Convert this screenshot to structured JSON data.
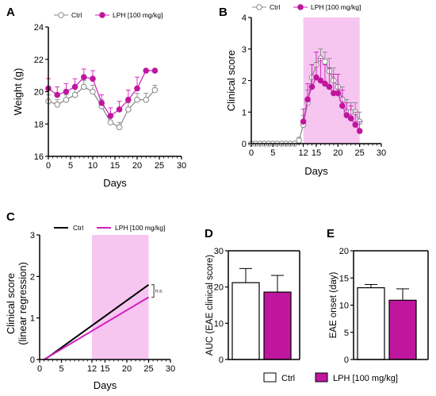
{
  "colors": {
    "ctrl": "#ffffff",
    "lph": "#c0169e",
    "lph_line": "#d11fbf",
    "ctrl_line": "#888888",
    "highlight": "#f6c6f1",
    "black": "#000000"
  },
  "panels": {
    "A": "A",
    "B": "B",
    "C": "C",
    "D": "D",
    "E": "E"
  },
  "legend_bottom": {
    "ctrl": "Ctrl",
    "lph": "LPH [100 mg/kg]"
  },
  "chart_data": [
    {
      "panel": "A",
      "type": "line",
      "xlabel": "Days",
      "ylabel": "Weight (g)",
      "xlim": [
        0,
        30
      ],
      "ylim": [
        16,
        24
      ],
      "xticks": [
        "0",
        "5",
        "10",
        "15",
        "20",
        "25",
        "30"
      ],
      "yticks": [
        "16",
        "18",
        "20",
        "22",
        "24"
      ],
      "legend": [
        "Ctrl",
        "LPH [100 mg/kg]"
      ],
      "x": [
        0,
        2,
        4,
        6,
        8,
        10,
        12,
        14,
        16,
        18,
        20,
        22,
        24
      ],
      "series": [
        {
          "name": "Ctrl",
          "values": [
            19.4,
            19.2,
            19.5,
            19.8,
            20.3,
            20.0,
            19.1,
            18.1,
            17.8,
            18.9,
            19.5,
            19.5,
            20.1
          ],
          "err": [
            0.4,
            0.3,
            0.3,
            0.4,
            0.4,
            0.4,
            0.4,
            0.4,
            0.3,
            0.4,
            0.4,
            0.4,
            0.3
          ]
        },
        {
          "name": "LPH [100 mg/kg]",
          "values": [
            20.2,
            19.8,
            20.0,
            20.3,
            20.9,
            20.8,
            19.3,
            18.5,
            18.9,
            19.5,
            20.2,
            21.3,
            21.3
          ],
          "err": [
            0.6,
            0.5,
            0.5,
            0.5,
            0.5,
            0.5,
            0.5,
            0.5,
            0.5,
            0.6,
            0.7,
            0.0,
            0.0
          ]
        }
      ]
    },
    {
      "panel": "B",
      "type": "line",
      "xlabel": "Days",
      "ylabel": "Clinical score",
      "xlim": [
        0,
        30
      ],
      "ylim": [
        0,
        4
      ],
      "xticks": [
        "0",
        "5",
        "12",
        "15",
        "20",
        "25",
        "30"
      ],
      "yticks": [
        "0",
        "1",
        "2",
        "3",
        "4"
      ],
      "shaded_x": [
        12,
        25
      ],
      "legend": [
        "Ctrl",
        "LPH [100 mg/kg]"
      ],
      "x": [
        0,
        1,
        2,
        3,
        4,
        5,
        6,
        7,
        8,
        9,
        10,
        11,
        12,
        13,
        14,
        15,
        16,
        17,
        18,
        19,
        20,
        21,
        22,
        23,
        24,
        25
      ],
      "series": [
        {
          "name": "Ctrl",
          "values": [
            0,
            0,
            0,
            0,
            0,
            0,
            0,
            0,
            0,
            0,
            0,
            0.1,
            0.6,
            1.3,
            2.1,
            2.5,
            2.7,
            2.6,
            2.3,
            2.0,
            1.8,
            1.4,
            1.0,
            1.0,
            1.0,
            0.7
          ],
          "err": [
            0,
            0,
            0,
            0,
            0,
            0,
            0,
            0,
            0,
            0,
            0,
            0.1,
            0.3,
            0.4,
            0.4,
            0.4,
            0.3,
            0.3,
            0.4,
            0.4,
            0.4,
            0.4,
            0.4,
            0.3,
            0.3,
            0.3
          ]
        },
        {
          "name": "LPH [100 mg/kg]",
          "values": [
            null,
            null,
            null,
            null,
            null,
            null,
            null,
            null,
            null,
            null,
            null,
            null,
            0.7,
            1.4,
            1.8,
            2.1,
            2.0,
            1.9,
            1.8,
            1.6,
            1.6,
            1.2,
            0.9,
            0.8,
            0.6,
            0.4
          ],
          "err": [
            0,
            0,
            0,
            0,
            0,
            0,
            0,
            0,
            0,
            0,
            0,
            0,
            0.4,
            0.5,
            0.7,
            0.8,
            0.7,
            0.6,
            0.6,
            0.6,
            0.6,
            0.5,
            0.4,
            0.4,
            0.4,
            0.3
          ]
        }
      ]
    },
    {
      "panel": "C",
      "type": "line",
      "xlabel": "Days",
      "ylabel": [
        "Clinical score",
        "(linear regression)"
      ],
      "xlim": [
        0,
        30
      ],
      "ylim": [
        0,
        3
      ],
      "xticks": [
        "0",
        "5",
        "12",
        "15",
        "20",
        "25",
        "30"
      ],
      "yticks": [
        "0",
        "1",
        "2",
        "3"
      ],
      "shaded_x": [
        12,
        25
      ],
      "legend": [
        "Ctrl",
        "LPH [100 mg/kg]"
      ],
      "annotation": "n.s.",
      "series": [
        {
          "name": "Ctrl",
          "x": [
            1.2,
            25
          ],
          "values": [
            0,
            1.8
          ]
        },
        {
          "name": "LPH [100 mg/kg]",
          "x": [
            1.0,
            25
          ],
          "values": [
            0,
            1.5
          ]
        }
      ]
    },
    {
      "panel": "D",
      "type": "bar",
      "ylabel": "AUC (EAE clinical score)",
      "ylim": [
        0,
        30
      ],
      "yticks": [
        "0",
        "10",
        "20",
        "30"
      ],
      "categories": [
        "Ctrl",
        "LPH [100 mg/kg]"
      ],
      "values": [
        21.2,
        18.6
      ],
      "err": [
        3.9,
        4.6
      ]
    },
    {
      "panel": "E",
      "type": "bar",
      "ylabel": "EAE onset (day)",
      "ylim": [
        0,
        20
      ],
      "yticks": [
        "0",
        "5",
        "10",
        "15",
        "20"
      ],
      "categories": [
        "Ctrl",
        "LPH [100 mg/kg]"
      ],
      "values": [
        13.2,
        10.9
      ],
      "err": [
        0.6,
        2.1
      ]
    }
  ]
}
